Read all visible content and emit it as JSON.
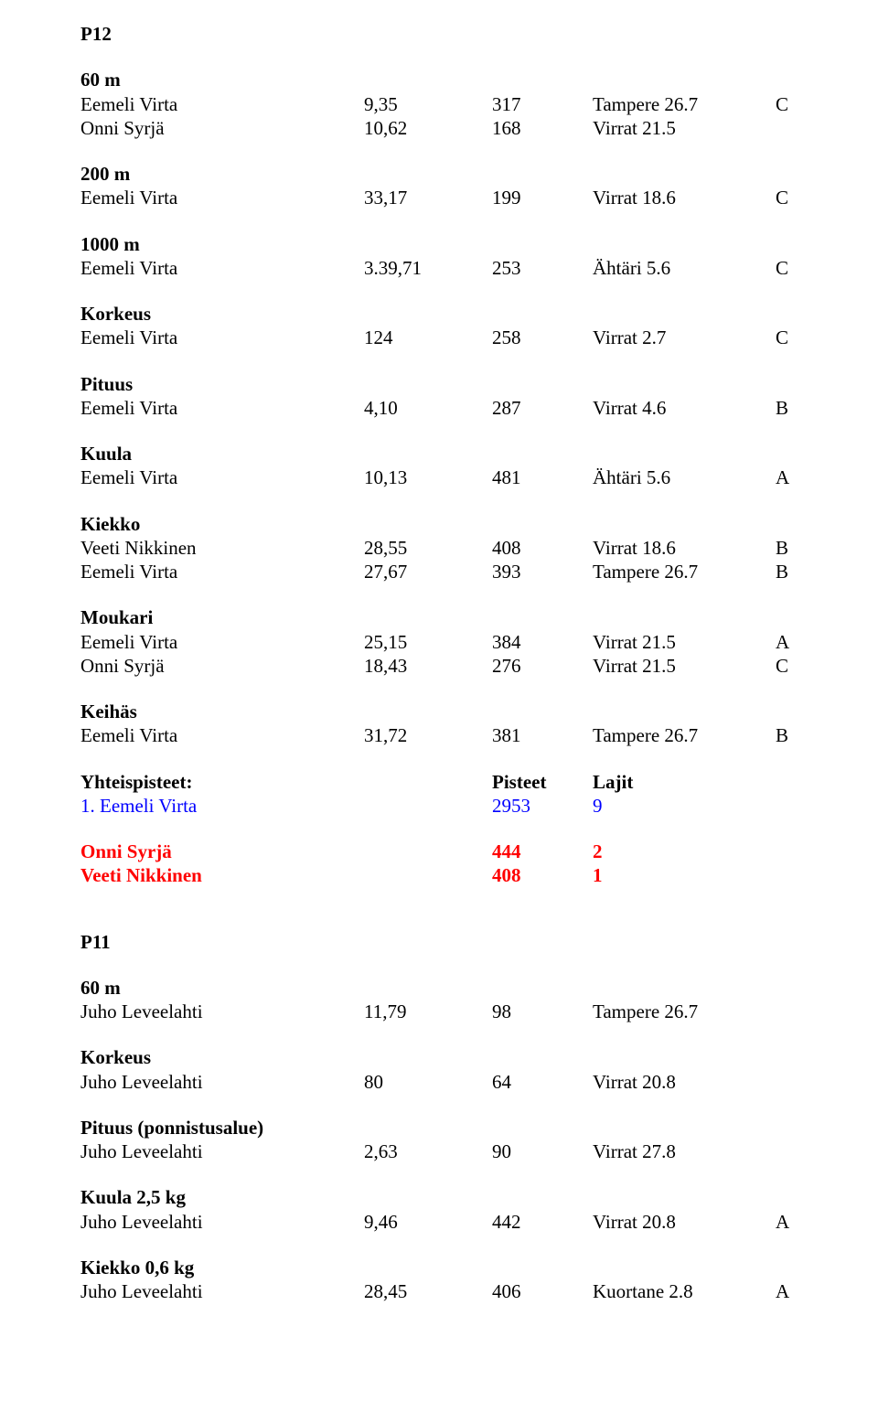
{
  "p12": {
    "title": "P12",
    "sections": [
      {
        "name": "60 m",
        "rows": [
          {
            "athlete": "Eemeli Virta",
            "v1": "9,35",
            "v2": "317",
            "venue": "Tampere 26.7",
            "grade": "C"
          },
          {
            "athlete": "Onni Syrjä",
            "v1": "10,62",
            "v2": "168",
            "venue": "Virrat 21.5",
            "grade": ""
          }
        ]
      },
      {
        "name": "200 m",
        "rows": [
          {
            "athlete": "Eemeli Virta",
            "v1": "33,17",
            "v2": "199",
            "venue": "Virrat 18.6",
            "grade": "C"
          }
        ]
      },
      {
        "name": "1000 m",
        "rows": [
          {
            "athlete": "Eemeli Virta",
            "v1": "3.39,71",
            "v2": "253",
            "venue": "Ähtäri 5.6",
            "grade": "C"
          }
        ]
      },
      {
        "name": "Korkeus",
        "rows": [
          {
            "athlete": "Eemeli Virta",
            "v1": "124",
            "v2": "258",
            "venue": "Virrat 2.7",
            "grade": "C"
          }
        ]
      },
      {
        "name": "Pituus",
        "rows": [
          {
            "athlete": "Eemeli Virta",
            "v1": "4,10",
            "v2": "287",
            "venue": "Virrat 4.6",
            "grade": "B"
          }
        ]
      },
      {
        "name": "Kuula",
        "rows": [
          {
            "athlete": "Eemeli Virta",
            "v1": "10,13",
            "v2": "481",
            "venue": "Ähtäri 5.6",
            "grade": "A"
          }
        ]
      },
      {
        "name": "Kiekko",
        "rows": [
          {
            "athlete": "Veeti Nikkinen",
            "v1": "28,55",
            "v2": "408",
            "venue": "Virrat 18.6",
            "grade": "B"
          },
          {
            "athlete": "Eemeli Virta",
            "v1": "27,67",
            "v2": "393",
            "venue": "Tampere 26.7",
            "grade": "B"
          }
        ]
      },
      {
        "name": "Moukari",
        "rows": [
          {
            "athlete": "Eemeli Virta",
            "v1": "25,15",
            "v2": "384",
            "venue": "Virrat 21.5",
            "grade": "A"
          },
          {
            "athlete": "Onni Syrjä",
            "v1": "18,43",
            "v2": "276",
            "venue": "Virrat 21.5",
            "grade": "C"
          }
        ]
      },
      {
        "name": "Keihäs",
        "rows": [
          {
            "athlete": "Eemeli Virta",
            "v1": "31,72",
            "v2": "381",
            "venue": "Tampere 26.7",
            "grade": "B"
          }
        ]
      }
    ],
    "yhteispisteet": {
      "header": {
        "label": "Yhteispisteet:",
        "pts": "Pisteet",
        "laj": "Lajit"
      },
      "rows": [
        {
          "name": "1. Eemeli Virta",
          "pts": "2953",
          "laj": "9",
          "color": "blue"
        }
      ],
      "extra": [
        {
          "name": "Onni Syrjä",
          "pts": "444",
          "laj": "2",
          "color": "red"
        },
        {
          "name": "Veeti Nikkinen",
          "pts": "408",
          "laj": "1",
          "color": "red"
        }
      ]
    }
  },
  "p11": {
    "title": "P11",
    "sections": [
      {
        "name": "60 m",
        "rows": [
          {
            "athlete": "Juho Leveelahti",
            "v1": "11,79",
            "v2": "98",
            "venue": "Tampere 26.7",
            "grade": ""
          }
        ]
      },
      {
        "name": "Korkeus",
        "rows": [
          {
            "athlete": "Juho Leveelahti",
            "v1": "80",
            "v2": "64",
            "venue": "Virrat 20.8",
            "grade": ""
          }
        ]
      },
      {
        "name": "Pituus (ponnistusalue)",
        "rows": [
          {
            "athlete": "Juho Leveelahti",
            "v1": "2,63",
            "v2": "90",
            "venue": "Virrat 27.8",
            "grade": ""
          }
        ]
      },
      {
        "name": "Kuula 2,5 kg",
        "rows": [
          {
            "athlete": "Juho Leveelahti",
            "v1": "9,46",
            "v2": "442",
            "venue": "Virrat 20.8",
            "grade": "A"
          }
        ]
      },
      {
        "name": "Kiekko 0,6 kg",
        "rows": [
          {
            "athlete": "Juho Leveelahti",
            "v1": "28,45",
            "v2": "406",
            "venue": "Kuortane 2.8",
            "grade": "A"
          }
        ]
      }
    ]
  }
}
